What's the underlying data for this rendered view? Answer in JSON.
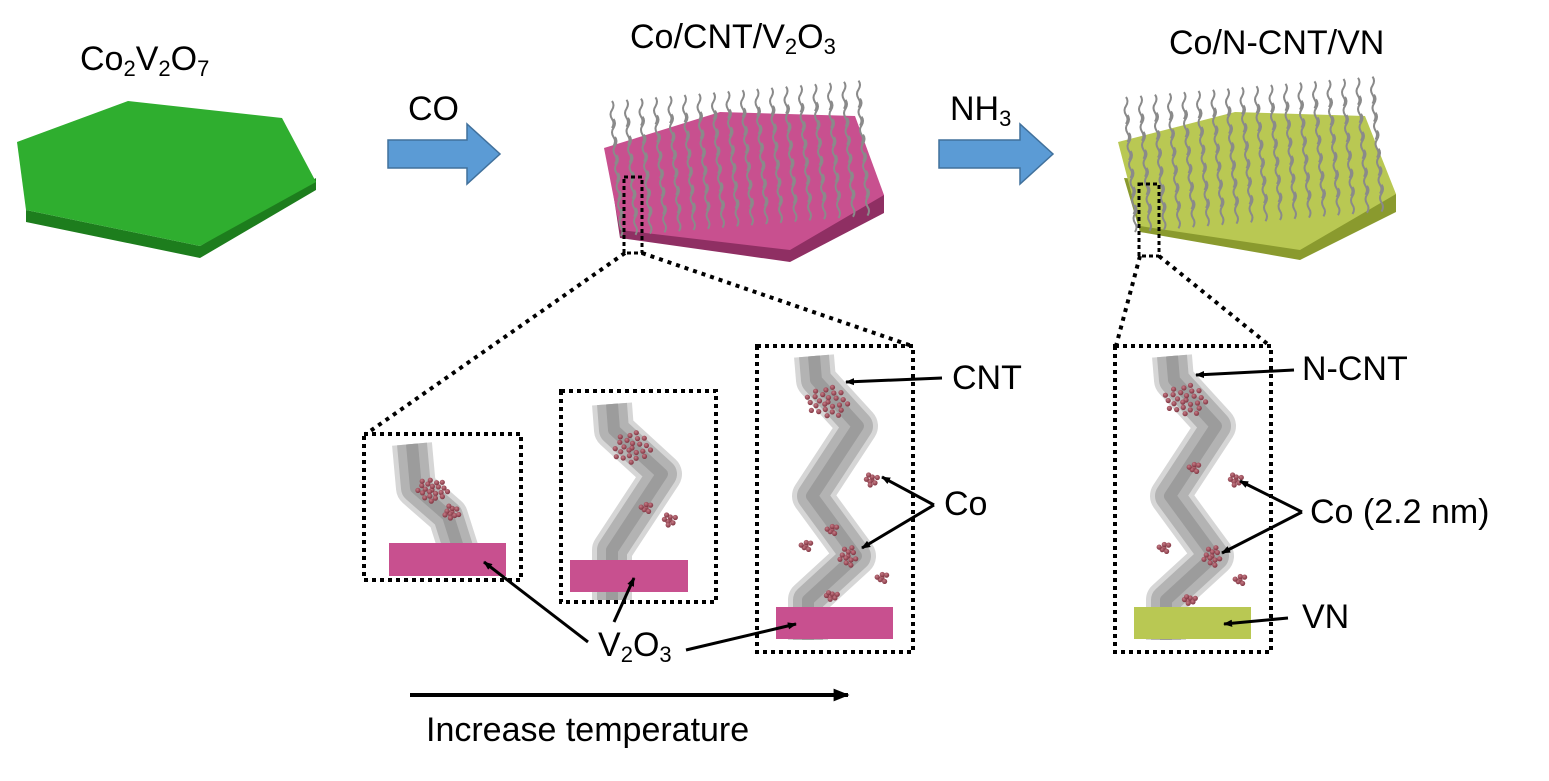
{
  "labels": {
    "precursor": {
      "a": "Co",
      "sub1": "2",
      "b": "V",
      "sub2": "2",
      "c": "O",
      "sub3": "7"
    },
    "intermediate": {
      "a": "Co/CNT/V",
      "sub1": "2",
      "b": "O",
      "sub2": "3"
    },
    "final": "Co/N-CNT/VN",
    "step1_gas": "CO",
    "step2_gas": {
      "a": "NH",
      "sub1": "3"
    },
    "cnt": "CNT",
    "ncnt": "N-CNT",
    "co": "Co",
    "co_size": "Co (2.2 nm)",
    "v2o3": {
      "a": "V",
      "sub1": "2",
      "b": "O",
      "sub2": "3"
    },
    "vn": "VN",
    "temperature_axis": "Increase temperature"
  },
  "colors": {
    "precursor_green": "#2fae2f",
    "precursor_green_side": "#1d7d1d",
    "v2o3_magenta": "#c8508f",
    "v2o3_magenta_side": "#8f2f63",
    "vn_yellowgreen": "#b9c853",
    "vn_yellowgreen_side": "#8a9a2e",
    "process_arrow_blue": "#5b9bd5",
    "process_arrow_outline": "#41719c",
    "cnt_gray": "#a8a8a8",
    "cnt_light": "#d6d6d6",
    "co_particle": "#8b3a48"
  },
  "icons": {
    "process_arrow": "right-block-arrow",
    "callout_arrow": "arrow-with-head"
  }
}
